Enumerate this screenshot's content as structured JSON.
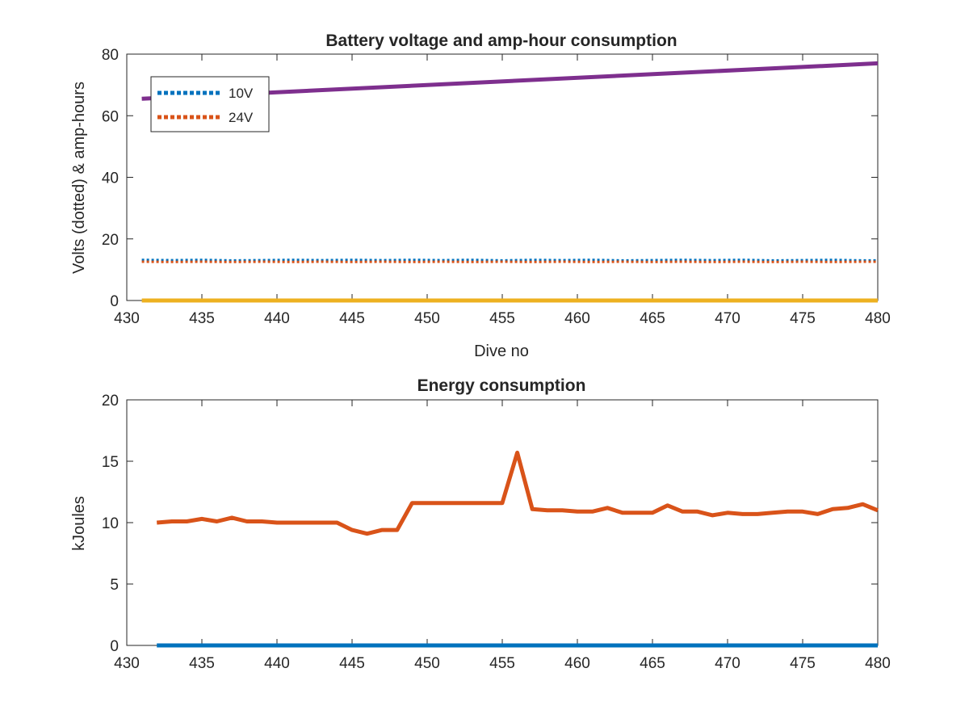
{
  "chart_data": [
    {
      "type": "line",
      "title": "Battery voltage and amp-hour consumption",
      "xlabel": "Dive no",
      "ylabel": "Volts (dotted) & amp-hours",
      "xlim": [
        430,
        480
      ],
      "ylim": [
        0,
        80
      ],
      "xticks": [
        "430",
        "435",
        "440",
        "445",
        "450",
        "455",
        "460",
        "465",
        "470",
        "475",
        "480"
      ],
      "yticks": [
        "0",
        "20",
        "40",
        "60",
        "80"
      ],
      "legend_position": "top-left",
      "series": [
        {
          "name": "10V",
          "style": "dotted",
          "color": "#0072BD",
          "x": [
            431,
            433,
            435,
            437,
            439,
            441,
            443,
            445,
            447,
            449,
            451,
            453,
            455,
            457,
            459,
            461,
            463,
            465,
            467,
            469,
            471,
            473,
            475,
            477,
            479,
            480
          ],
          "y": [
            13.2,
            13.1,
            13.2,
            13.0,
            13.1,
            13.2,
            13.1,
            13.2,
            13.1,
            13.2,
            13.1,
            13.2,
            13.0,
            13.2,
            13.1,
            13.2,
            13.0,
            13.1,
            13.2,
            13.1,
            13.2,
            13.0,
            13.1,
            13.2,
            13.0,
            13.0
          ]
        },
        {
          "name": "24V",
          "style": "dotted",
          "color": "#D95319",
          "x": [
            431,
            433,
            435,
            437,
            439,
            441,
            443,
            445,
            447,
            449,
            451,
            453,
            455,
            457,
            459,
            461,
            463,
            465,
            467,
            469,
            471,
            473,
            475,
            477,
            479,
            480
          ],
          "y": [
            12.6,
            12.5,
            12.6,
            12.5,
            12.6,
            12.5,
            12.6,
            12.5,
            12.6,
            12.5,
            12.6,
            12.5,
            12.6,
            12.5,
            12.6,
            12.5,
            12.6,
            12.5,
            12.6,
            12.5,
            12.6,
            12.5,
            12.6,
            12.5,
            12.6,
            12.6
          ]
        },
        {
          "style": "solid",
          "color": "#EDB120",
          "x": [
            431,
            480
          ],
          "y": [
            0,
            0
          ]
        },
        {
          "style": "solid",
          "color": "#7E2F8E",
          "x": [
            431,
            480
          ],
          "y": [
            65.5,
            77
          ]
        }
      ]
    },
    {
      "type": "line",
      "title": "Energy consumption",
      "xlabel": "",
      "ylabel": "kJoules",
      "xlim": [
        430,
        480
      ],
      "ylim": [
        0,
        20
      ],
      "xticks": [
        "430",
        "435",
        "440",
        "445",
        "450",
        "455",
        "460",
        "465",
        "470",
        "475",
        "480"
      ],
      "yticks": [
        "0",
        "5",
        "10",
        "15",
        "20"
      ],
      "series": [
        {
          "style": "solid",
          "color": "#0072BD",
          "x": [
            432,
            480
          ],
          "y": [
            0,
            0
          ]
        },
        {
          "style": "solid",
          "color": "#D95319",
          "x": [
            432,
            433,
            434,
            435,
            436,
            437,
            438,
            439,
            440,
            441,
            442,
            443,
            444,
            445,
            446,
            447,
            448,
            449,
            450,
            451,
            452,
            453,
            454,
            455,
            456,
            457,
            458,
            459,
            460,
            461,
            462,
            463,
            464,
            465,
            466,
            467,
            468,
            469,
            470,
            471,
            472,
            473,
            474,
            475,
            476,
            477,
            478,
            479,
            480
          ],
          "y": [
            10.0,
            10.1,
            10.1,
            10.3,
            10.1,
            10.4,
            10.1,
            10.1,
            10.0,
            10.0,
            10.0,
            10.0,
            10.0,
            9.4,
            9.1,
            9.4,
            9.4,
            11.6,
            11.6,
            11.6,
            11.6,
            11.6,
            11.6,
            11.6,
            15.7,
            11.1,
            11.0,
            11.0,
            10.9,
            10.9,
            11.2,
            10.8,
            10.8,
            10.8,
            11.4,
            10.9,
            10.9,
            10.6,
            10.8,
            10.7,
            10.7,
            10.8,
            10.9,
            10.9,
            10.7,
            11.1,
            11.2,
            11.5,
            11.0
          ]
        }
      ]
    }
  ]
}
